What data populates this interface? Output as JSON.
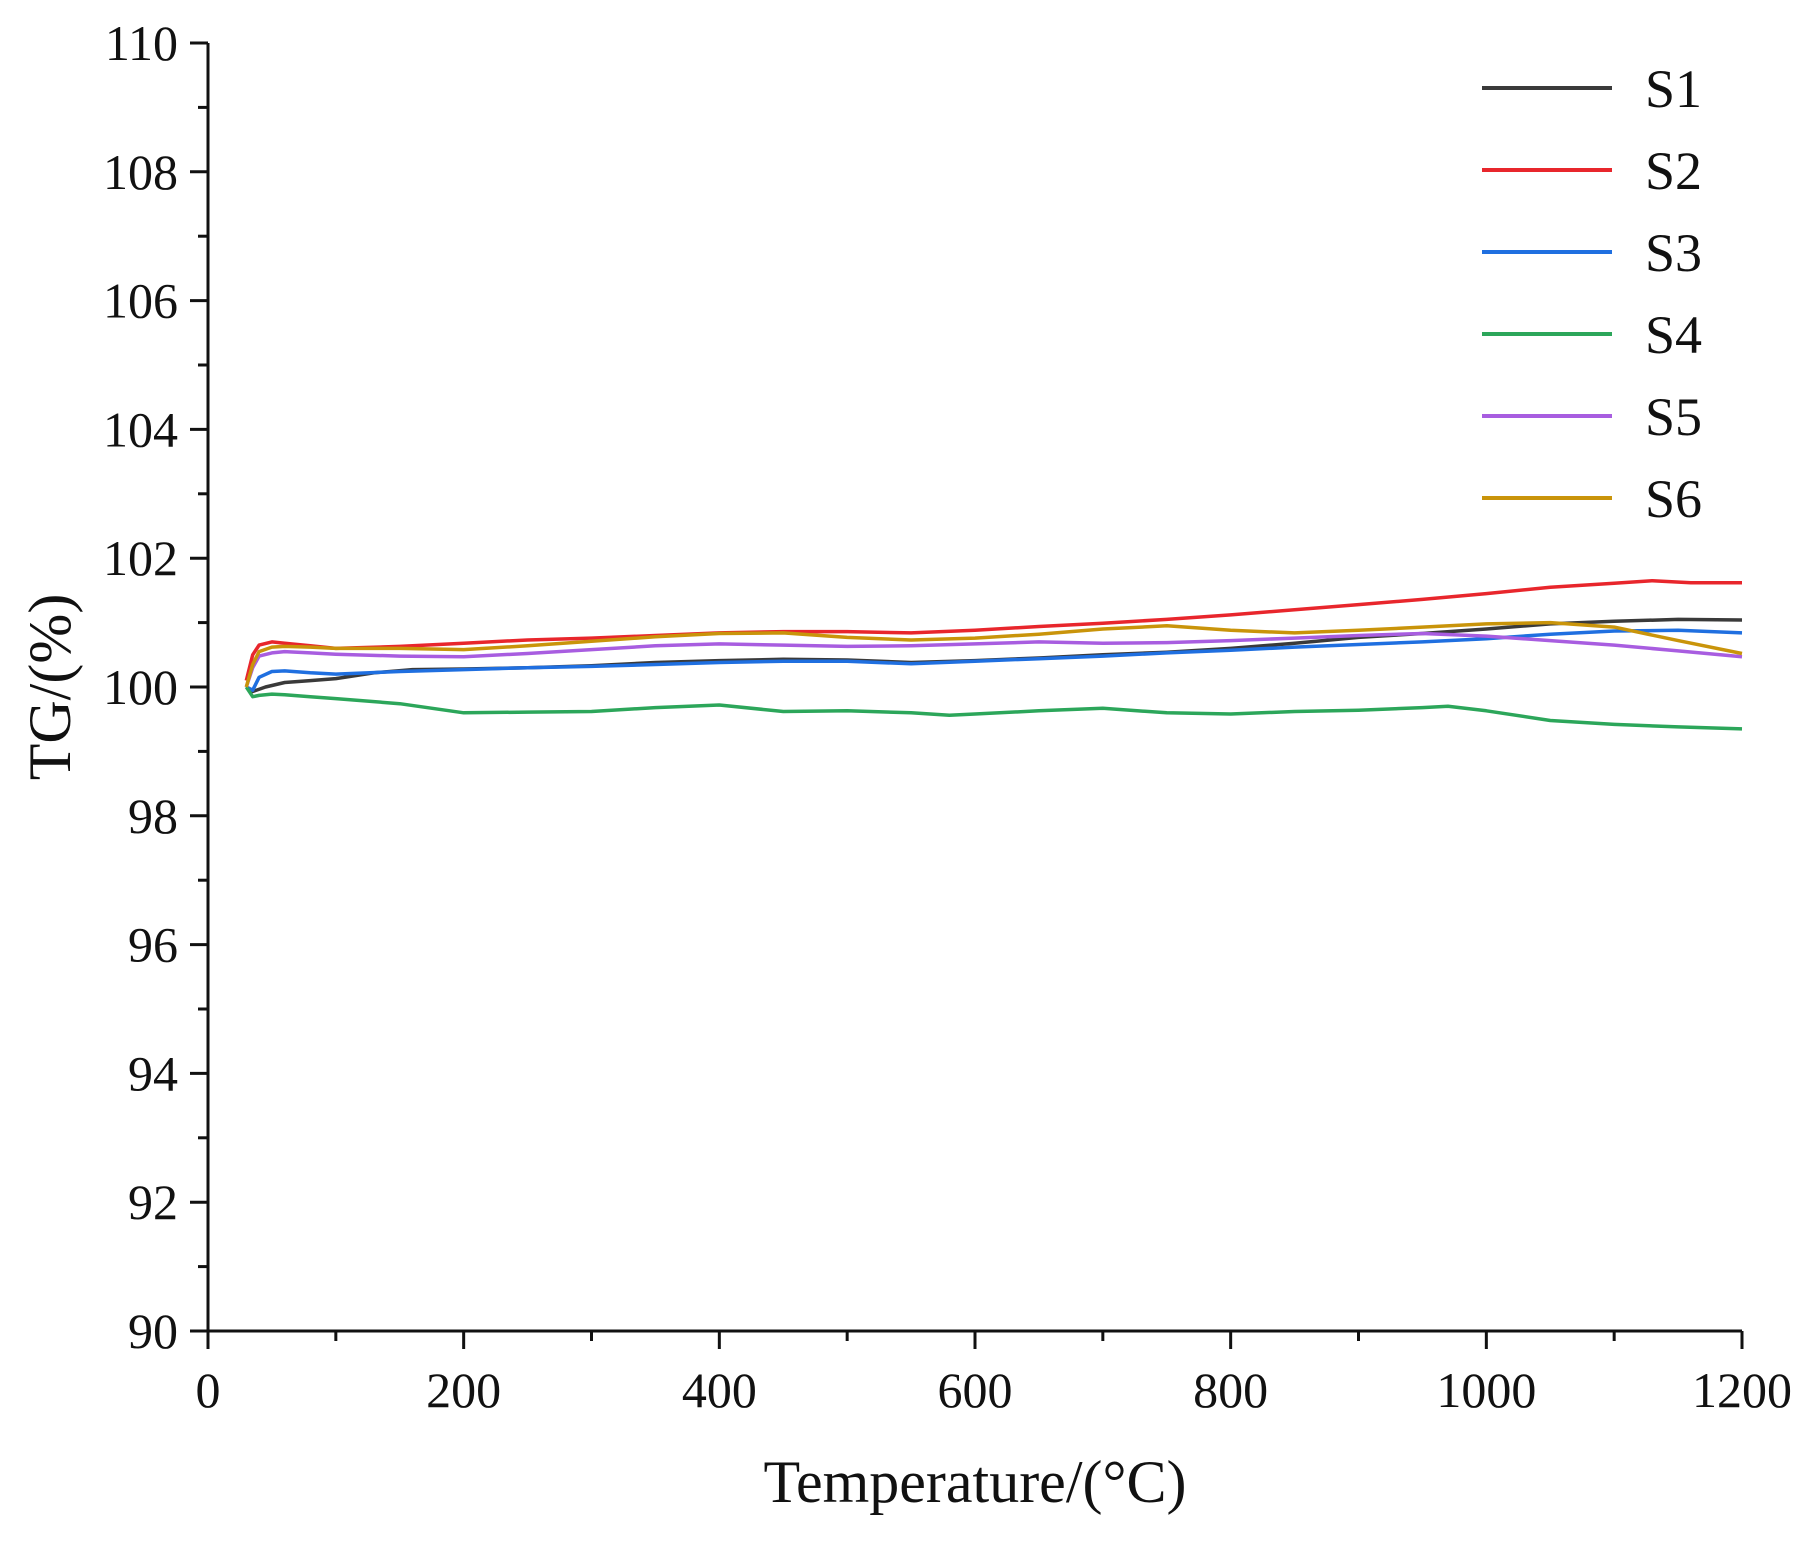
{
  "chart_data": {
    "type": "line",
    "title": "",
    "xlabel": "Temperature/(°C)",
    "ylabel": "TG/(%)",
    "xlim": [
      0,
      1200
    ],
    "ylim": [
      90,
      110
    ],
    "xticks": [
      0,
      200,
      400,
      600,
      800,
      1000,
      1200
    ],
    "yticks": [
      90,
      92,
      94,
      96,
      98,
      100,
      102,
      104,
      106,
      108,
      110
    ],
    "grid": false,
    "legend_position": "top-right",
    "series": [
      {
        "name": "S1",
        "color": "#3a3a3a",
        "x": [
          30,
          35,
          45,
          60,
          80,
          100,
          130,
          160,
          200,
          250,
          300,
          350,
          400,
          450,
          500,
          550,
          600,
          650,
          700,
          750,
          800,
          850,
          900,
          950,
          1000,
          1050,
          1100,
          1150,
          1200
        ],
        "y": [
          100.0,
          99.93,
          100.0,
          100.07,
          100.1,
          100.13,
          100.22,
          100.27,
          100.28,
          100.3,
          100.33,
          100.38,
          100.41,
          100.43,
          100.42,
          100.38,
          100.41,
          100.45,
          100.5,
          100.54,
          100.6,
          100.68,
          100.77,
          100.83,
          100.9,
          100.98,
          101.02,
          101.05,
          101.04
        ]
      },
      {
        "name": "S2",
        "color": "#e8262c",
        "x": [
          30,
          35,
          40,
          50,
          60,
          80,
          100,
          150,
          200,
          250,
          300,
          350,
          400,
          450,
          500,
          550,
          600,
          650,
          700,
          750,
          800,
          850,
          900,
          950,
          1000,
          1050,
          1100,
          1130,
          1160,
          1200
        ],
        "y": [
          100.1,
          100.5,
          100.65,
          100.7,
          100.68,
          100.64,
          100.6,
          100.63,
          100.68,
          100.73,
          100.76,
          100.8,
          100.84,
          100.86,
          100.86,
          100.84,
          100.88,
          100.94,
          100.99,
          101.05,
          101.12,
          101.2,
          101.28,
          101.36,
          101.45,
          101.55,
          101.61,
          101.65,
          101.62,
          101.62
        ]
      },
      {
        "name": "S3",
        "color": "#1f6fe0",
        "x": [
          30,
          35,
          40,
          50,
          60,
          80,
          100,
          150,
          200,
          250,
          300,
          350,
          400,
          450,
          500,
          550,
          600,
          650,
          700,
          750,
          800,
          850,
          900,
          950,
          1000,
          1050,
          1100,
          1150,
          1200
        ],
        "y": [
          100.0,
          99.95,
          100.15,
          100.24,
          100.25,
          100.22,
          100.2,
          100.24,
          100.27,
          100.3,
          100.32,
          100.35,
          100.38,
          100.4,
          100.4,
          100.36,
          100.4,
          100.44,
          100.48,
          100.53,
          100.57,
          100.62,
          100.66,
          100.7,
          100.75,
          100.82,
          100.87,
          100.88,
          100.84
        ]
      },
      {
        "name": "S4",
        "color": "#2ca65a",
        "x": [
          30,
          35,
          40,
          50,
          60,
          80,
          100,
          150,
          200,
          250,
          300,
          350,
          400,
          450,
          500,
          550,
          580,
          600,
          650,
          700,
          750,
          800,
          850,
          900,
          950,
          970,
          1000,
          1050,
          1100,
          1150,
          1200
        ],
        "y": [
          100.0,
          99.85,
          99.87,
          99.89,
          99.88,
          99.85,
          99.82,
          99.74,
          99.6,
          99.61,
          99.62,
          99.68,
          99.72,
          99.62,
          99.63,
          99.6,
          99.56,
          99.58,
          99.63,
          99.67,
          99.6,
          99.58,
          99.62,
          99.64,
          99.68,
          99.7,
          99.63,
          99.48,
          99.42,
          99.38,
          99.35
        ]
      },
      {
        "name": "S5",
        "color": "#a85de0",
        "x": [
          30,
          35,
          40,
          50,
          60,
          80,
          100,
          150,
          200,
          250,
          300,
          350,
          400,
          450,
          500,
          550,
          600,
          650,
          700,
          750,
          800,
          850,
          900,
          950,
          1000,
          1050,
          1100,
          1150,
          1200
        ],
        "y": [
          100.0,
          100.3,
          100.48,
          100.53,
          100.55,
          100.53,
          100.51,
          100.48,
          100.47,
          100.52,
          100.58,
          100.64,
          100.67,
          100.65,
          100.63,
          100.64,
          100.67,
          100.7,
          100.68,
          100.69,
          100.72,
          100.76,
          100.8,
          100.83,
          100.79,
          100.72,
          100.65,
          100.56,
          100.47
        ]
      },
      {
        "name": "S6",
        "color": "#c9940a",
        "x": [
          30,
          35,
          40,
          50,
          60,
          80,
          100,
          150,
          200,
          250,
          300,
          350,
          400,
          450,
          500,
          550,
          600,
          650,
          700,
          750,
          800,
          850,
          900,
          950,
          1000,
          1050,
          1100,
          1150,
          1200
        ],
        "y": [
          100.0,
          100.35,
          100.55,
          100.62,
          100.63,
          100.62,
          100.6,
          100.6,
          100.58,
          100.64,
          100.71,
          100.78,
          100.83,
          100.84,
          100.77,
          100.73,
          100.76,
          100.82,
          100.9,
          100.95,
          100.88,
          100.84,
          100.88,
          100.93,
          100.98,
          101.0,
          100.93,
          100.72,
          100.52
        ]
      }
    ]
  }
}
